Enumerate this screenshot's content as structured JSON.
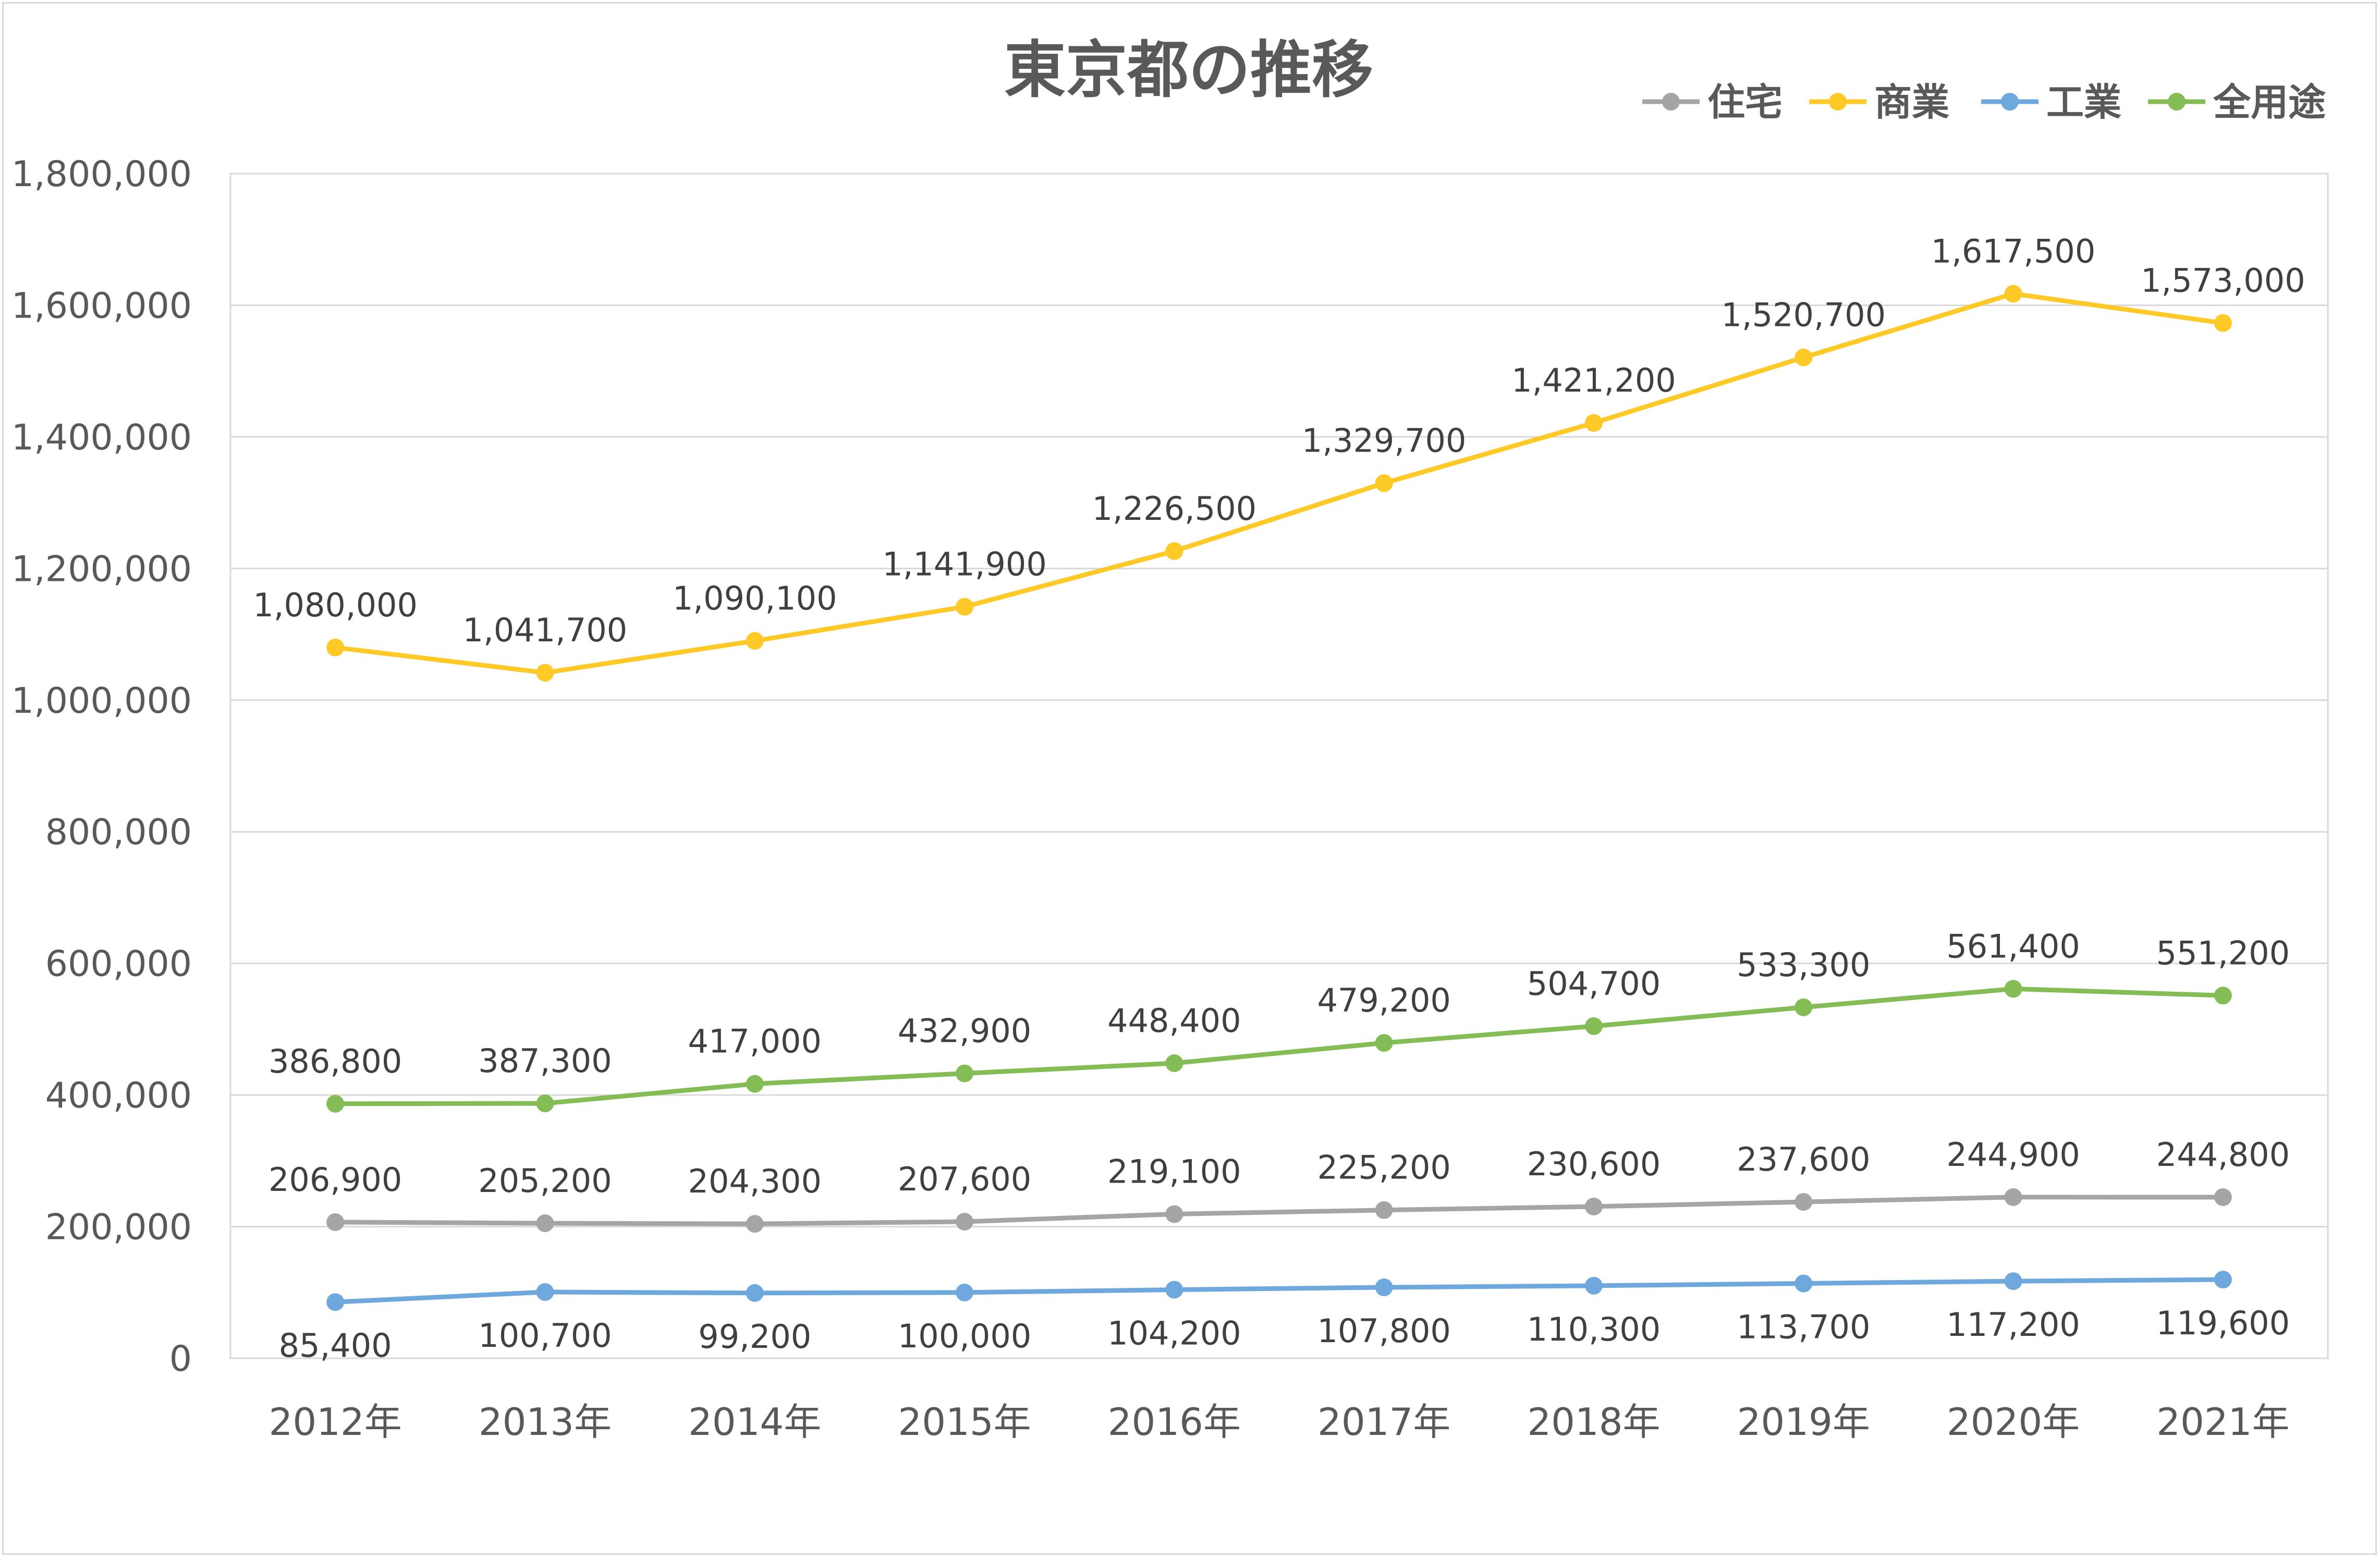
{
  "chart_data": {
    "type": "line",
    "title": "東京都の推移",
    "xlabel": "",
    "ylabel": "",
    "ylim": [
      0,
      1800000
    ],
    "yticks": [
      0,
      200000,
      400000,
      600000,
      800000,
      1000000,
      1200000,
      1400000,
      1600000,
      1800000
    ],
    "ytick_labels": [
      "0",
      "200,000",
      "400,000",
      "600,000",
      "800,000",
      "1,000,000",
      "1,200,000",
      "1,400,000",
      "1,600,000",
      "1,800,000"
    ],
    "grid": true,
    "legend_position": "top-right",
    "categories": [
      "2012年",
      "2013年",
      "2014年",
      "2015年",
      "2016年",
      "2017年",
      "2018年",
      "2019年",
      "2020年",
      "2021年"
    ],
    "series": [
      {
        "name": "住宅",
        "color": "#a5a5a5",
        "label_position": "above",
        "values": [
          206900,
          205200,
          204300,
          207600,
          219100,
          225200,
          230600,
          237600,
          244900,
          244800
        ],
        "labels": [
          "206,900",
          "205,200",
          "204,300",
          "207,600",
          "219,100",
          "225,200",
          "230,600",
          "237,600",
          "244,900",
          "244,800"
        ]
      },
      {
        "name": "商業",
        "color": "#ffc928",
        "label_position": "above",
        "values": [
          1080000,
          1041700,
          1090100,
          1141900,
          1226500,
          1329700,
          1421200,
          1520700,
          1617500,
          1573000
        ],
        "labels": [
          "1,080,000",
          "1,041,700",
          "1,090,100",
          "1,141,900",
          "1,226,500",
          "1,329,700",
          "1,421,200",
          "1,520,700",
          "1,617,500",
          "1,573,000"
        ]
      },
      {
        "name": "工業",
        "color": "#6fa8dc",
        "label_position": "below",
        "values": [
          85400,
          100700,
          99200,
          100000,
          104200,
          107800,
          110300,
          113700,
          117200,
          119600
        ],
        "labels": [
          "85,400",
          "100,700",
          "99,200",
          "100,000",
          "104,200",
          "107,800",
          "110,300",
          "113,700",
          "117,200",
          "119,600"
        ]
      },
      {
        "name": "全用途",
        "color": "#84bd55",
        "label_position": "above",
        "values": [
          386800,
          387300,
          417000,
          432900,
          448400,
          479200,
          504700,
          533300,
          561400,
          551200
        ],
        "labels": [
          "386,800",
          "387,300",
          "417,000",
          "432,900",
          "448,400",
          "479,200",
          "504,700",
          "533,300",
          "561,400",
          "551,200"
        ]
      }
    ]
  },
  "colors": {
    "axis_text": "#595959",
    "title_text": "#595959",
    "data_label_text": "#404040",
    "gridline": "#d9d9d9",
    "frame": "#d9d9d9"
  }
}
